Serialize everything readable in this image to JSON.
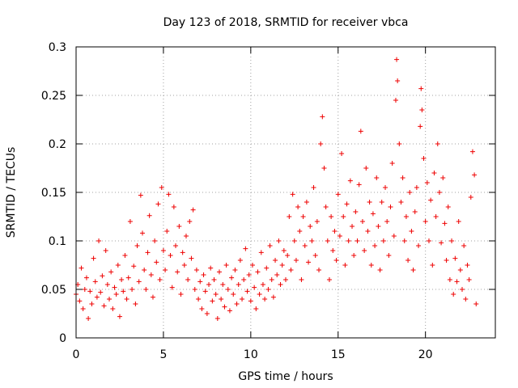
{
  "chart_data": {
    "type": "scatter",
    "title": "Day 123 of 2018, SRMTID for receiver vbca",
    "xlabel": "GPS time / hours",
    "ylabel": "SRMTID / TECUs",
    "xlim": [
      0,
      24
    ],
    "ylim": [
      0,
      0.3
    ],
    "xticks": [
      0,
      5,
      10,
      15,
      20
    ],
    "yticks": [
      0,
      0.05,
      0.1,
      0.15,
      0.2,
      0.25,
      0.3
    ],
    "xtick_labels": [
      "0",
      "5",
      "10",
      "15",
      "20"
    ],
    "ytick_labels": [
      "0",
      "0.05",
      "0.1",
      "0.15",
      "0.2",
      "0.25",
      "0.3"
    ],
    "grid": true,
    "marker": "+",
    "series": [
      {
        "name": "SRMTID",
        "color": "#ee0000",
        "points": [
          [
            0.0,
            0.045
          ],
          [
            0.1,
            0.055
          ],
          [
            0.2,
            0.038
          ],
          [
            0.3,
            0.072
          ],
          [
            0.4,
            0.03
          ],
          [
            0.5,
            0.05
          ],
          [
            0.6,
            0.062
          ],
          [
            0.7,
            0.02
          ],
          [
            0.8,
            0.048
          ],
          [
            0.9,
            0.035
          ],
          [
            1.0,
            0.082
          ],
          [
            1.1,
            0.058
          ],
          [
            1.2,
            0.042
          ],
          [
            1.3,
            0.1
          ],
          [
            1.4,
            0.047
          ],
          [
            1.5,
            0.064
          ],
          [
            1.6,
            0.033
          ],
          [
            1.7,
            0.09
          ],
          [
            1.8,
            0.055
          ],
          [
            1.9,
            0.04
          ],
          [
            2.0,
            0.068
          ],
          [
            2.1,
            0.03
          ],
          [
            2.2,
            0.052
          ],
          [
            2.3,
            0.045
          ],
          [
            2.4,
            0.075
          ],
          [
            2.5,
            0.022
          ],
          [
            2.6,
            0.06
          ],
          [
            2.7,
            0.048
          ],
          [
            2.8,
            0.085
          ],
          [
            2.9,
            0.04
          ],
          [
            3.0,
            0.062
          ],
          [
            3.1,
            0.12
          ],
          [
            3.2,
            0.05
          ],
          [
            3.3,
            0.074
          ],
          [
            3.4,
            0.035
          ],
          [
            3.5,
            0.095
          ],
          [
            3.6,
            0.058
          ],
          [
            3.7,
            0.147
          ],
          [
            3.8,
            0.108
          ],
          [
            3.9,
            0.07
          ],
          [
            4.0,
            0.05
          ],
          [
            4.1,
            0.088
          ],
          [
            4.2,
            0.126
          ],
          [
            4.3,
            0.065
          ],
          [
            4.4,
            0.042
          ],
          [
            4.5,
            0.1
          ],
          [
            4.6,
            0.078
          ],
          [
            4.7,
            0.138
          ],
          [
            4.8,
            0.06
          ],
          [
            4.9,
            0.155
          ],
          [
            5.0,
            0.09
          ],
          [
            5.1,
            0.07
          ],
          [
            5.2,
            0.11
          ],
          [
            5.3,
            0.148
          ],
          [
            5.4,
            0.085
          ],
          [
            5.5,
            0.052
          ],
          [
            5.6,
            0.135
          ],
          [
            5.7,
            0.095
          ],
          [
            5.8,
            0.068
          ],
          [
            5.9,
            0.115
          ],
          [
            6.0,
            0.045
          ],
          [
            6.1,
            0.088
          ],
          [
            6.2,
            0.075
          ],
          [
            6.3,
            0.105
          ],
          [
            6.4,
            0.06
          ],
          [
            6.5,
            0.12
          ],
          [
            6.6,
            0.082
          ],
          [
            6.7,
            0.132
          ],
          [
            6.8,
            0.05
          ],
          [
            6.9,
            0.07
          ],
          [
            7.0,
            0.04
          ],
          [
            7.1,
            0.058
          ],
          [
            7.2,
            0.03
          ],
          [
            7.3,
            0.065
          ],
          [
            7.4,
            0.048
          ],
          [
            7.5,
            0.025
          ],
          [
            7.6,
            0.055
          ],
          [
            7.7,
            0.072
          ],
          [
            7.8,
            0.038
          ],
          [
            7.9,
            0.06
          ],
          [
            8.0,
            0.045
          ],
          [
            8.1,
            0.02
          ],
          [
            8.2,
            0.068
          ],
          [
            8.3,
            0.04
          ],
          [
            8.4,
            0.055
          ],
          [
            8.5,
            0.032
          ],
          [
            8.6,
            0.075
          ],
          [
            8.7,
            0.05
          ],
          [
            8.8,
            0.028
          ],
          [
            8.9,
            0.062
          ],
          [
            9.0,
            0.045
          ],
          [
            9.1,
            0.07
          ],
          [
            9.2,
            0.035
          ],
          [
            9.3,
            0.055
          ],
          [
            9.4,
            0.08
          ],
          [
            9.5,
            0.04
          ],
          [
            9.6,
            0.06
          ],
          [
            9.7,
            0.092
          ],
          [
            9.8,
            0.048
          ],
          [
            9.9,
            0.065
          ],
          [
            10.0,
            0.038
          ],
          [
            10.1,
            0.075
          ],
          [
            10.2,
            0.052
          ],
          [
            10.3,
            0.03
          ],
          [
            10.4,
            0.068
          ],
          [
            10.5,
            0.045
          ],
          [
            10.6,
            0.088
          ],
          [
            10.7,
            0.055
          ],
          [
            10.8,
            0.04
          ],
          [
            10.9,
            0.072
          ],
          [
            11.0,
            0.05
          ],
          [
            11.1,
            0.095
          ],
          [
            11.2,
            0.06
          ],
          [
            11.3,
            0.042
          ],
          [
            11.4,
            0.08
          ],
          [
            11.5,
            0.065
          ],
          [
            11.6,
            0.1
          ],
          [
            11.7,
            0.055
          ],
          [
            11.8,
            0.075
          ],
          [
            11.9,
            0.09
          ],
          [
            12.0,
            0.06
          ],
          [
            12.1,
            0.085
          ],
          [
            12.2,
            0.125
          ],
          [
            12.3,
            0.07
          ],
          [
            12.4,
            0.148
          ],
          [
            12.5,
            0.1
          ],
          [
            12.6,
            0.08
          ],
          [
            12.7,
            0.135
          ],
          [
            12.8,
            0.11
          ],
          [
            12.9,
            0.06
          ],
          [
            13.0,
            0.125
          ],
          [
            13.1,
            0.095
          ],
          [
            13.2,
            0.14
          ],
          [
            13.3,
            0.078
          ],
          [
            13.4,
            0.115
          ],
          [
            13.5,
            0.1
          ],
          [
            13.6,
            0.155
          ],
          [
            13.7,
            0.085
          ],
          [
            13.8,
            0.12
          ],
          [
            13.9,
            0.07
          ],
          [
            14.0,
            0.2
          ],
          [
            14.1,
            0.228
          ],
          [
            14.2,
            0.175
          ],
          [
            14.3,
            0.135
          ],
          [
            14.4,
            0.1
          ],
          [
            14.5,
            0.06
          ],
          [
            14.6,
            0.125
          ],
          [
            14.7,
            0.09
          ],
          [
            14.8,
            0.11
          ],
          [
            14.9,
            0.08
          ],
          [
            15.0,
            0.148
          ],
          [
            15.1,
            0.105
          ],
          [
            15.2,
            0.19
          ],
          [
            15.3,
            0.125
          ],
          [
            15.4,
            0.075
          ],
          [
            15.5,
            0.138
          ],
          [
            15.6,
            0.1
          ],
          [
            15.7,
            0.162
          ],
          [
            15.8,
            0.115
          ],
          [
            15.9,
            0.085
          ],
          [
            16.0,
            0.13
          ],
          [
            16.1,
            0.1
          ],
          [
            16.2,
            0.158
          ],
          [
            16.3,
            0.213
          ],
          [
            16.4,
            0.12
          ],
          [
            16.5,
            0.09
          ],
          [
            16.6,
            0.175
          ],
          [
            16.7,
            0.11
          ],
          [
            16.8,
            0.14
          ],
          [
            16.9,
            0.075
          ],
          [
            17.0,
            0.128
          ],
          [
            17.1,
            0.095
          ],
          [
            17.2,
            0.165
          ],
          [
            17.3,
            0.115
          ],
          [
            17.4,
            0.07
          ],
          [
            17.5,
            0.14
          ],
          [
            17.6,
            0.1
          ],
          [
            17.7,
            0.155
          ],
          [
            17.8,
            0.12
          ],
          [
            17.9,
            0.085
          ],
          [
            18.0,
            0.135
          ],
          [
            18.1,
            0.18
          ],
          [
            18.2,
            0.105
          ],
          [
            18.3,
            0.245
          ],
          [
            18.35,
            0.287
          ],
          [
            18.4,
            0.265
          ],
          [
            18.5,
            0.2
          ],
          [
            18.6,
            0.14
          ],
          [
            18.7,
            0.165
          ],
          [
            18.8,
            0.1
          ],
          [
            18.9,
            0.125
          ],
          [
            19.0,
            0.08
          ],
          [
            19.1,
            0.15
          ],
          [
            19.2,
            0.11
          ],
          [
            19.3,
            0.07
          ],
          [
            19.4,
            0.13
          ],
          [
            19.5,
            0.155
          ],
          [
            19.6,
            0.095
          ],
          [
            19.7,
            0.218
          ],
          [
            19.75,
            0.257
          ],
          [
            19.8,
            0.235
          ],
          [
            19.9,
            0.185
          ],
          [
            20.0,
            0.12
          ],
          [
            20.1,
            0.16
          ],
          [
            20.2,
            0.1
          ],
          [
            20.3,
            0.142
          ],
          [
            20.4,
            0.075
          ],
          [
            20.5,
            0.17
          ],
          [
            20.6,
            0.125
          ],
          [
            20.7,
            0.2
          ],
          [
            20.8,
            0.15
          ],
          [
            20.9,
            0.098
          ],
          [
            21.0,
            0.165
          ],
          [
            21.1,
            0.118
          ],
          [
            21.2,
            0.08
          ],
          [
            21.3,
            0.135
          ],
          [
            21.4,
            0.06
          ],
          [
            21.5,
            0.1
          ],
          [
            21.6,
            0.045
          ],
          [
            21.7,
            0.082
          ],
          [
            21.8,
            0.058
          ],
          [
            21.9,
            0.12
          ],
          [
            22.0,
            0.07
          ],
          [
            22.1,
            0.05
          ],
          [
            22.2,
            0.095
          ],
          [
            22.3,
            0.04
          ],
          [
            22.4,
            0.075
          ],
          [
            22.5,
            0.06
          ],
          [
            22.6,
            0.145
          ],
          [
            22.7,
            0.192
          ],
          [
            22.8,
            0.168
          ],
          [
            22.9,
            0.035
          ]
        ]
      }
    ]
  }
}
